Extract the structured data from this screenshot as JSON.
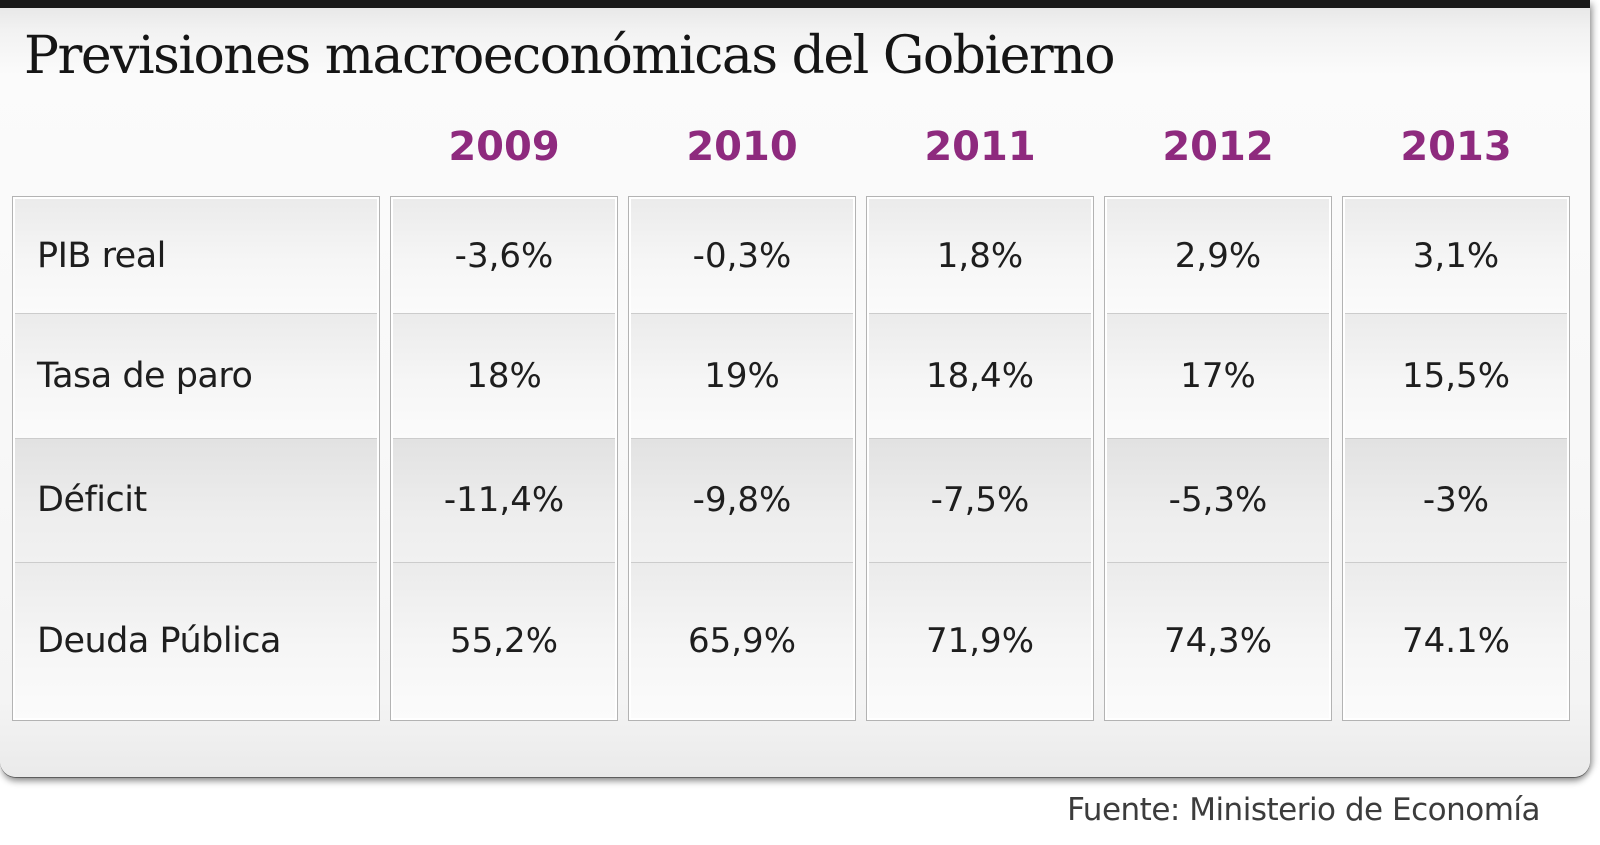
{
  "title": "Previsiones macroeconómicas del Gobierno",
  "source": "Fuente: Ministerio de Economía",
  "colors": {
    "year_header_text": "#8e2a7e",
    "title_text": "#151515",
    "cell_text": "#1e1e1e",
    "source_text": "#3c3c3c",
    "top_bar": "#191919",
    "box_border": "#b3b3b3",
    "row_separator": "#cccccc"
  },
  "chart_data": {
    "type": "table",
    "title": "Previsiones macroeconómicas del Gobierno",
    "columns": [
      "2009",
      "2010",
      "2011",
      "2012",
      "2013"
    ],
    "rows": [
      {
        "label": "PIB real",
        "values": [
          "-3,6%",
          "-0,3%",
          "1,8%",
          "2,9%",
          "3,1%"
        ]
      },
      {
        "label": "Tasa de paro",
        "values": [
          "18%",
          "19%",
          "18,4%",
          "17%",
          "15,5%"
        ]
      },
      {
        "label": "Déficit",
        "values": [
          "-11,4%",
          "-9,8%",
          "-7,5%",
          "-5,3%",
          "-3%"
        ]
      },
      {
        "label": "Deuda Pública",
        "values": [
          "55,2%",
          "65,9%",
          "71,9%",
          "74,3%",
          "74.1%"
        ]
      }
    ],
    "source": "Fuente: Ministerio de Economía",
    "layout": {
      "legend": "none",
      "grid": "column-boxes",
      "header_position": "top"
    }
  }
}
